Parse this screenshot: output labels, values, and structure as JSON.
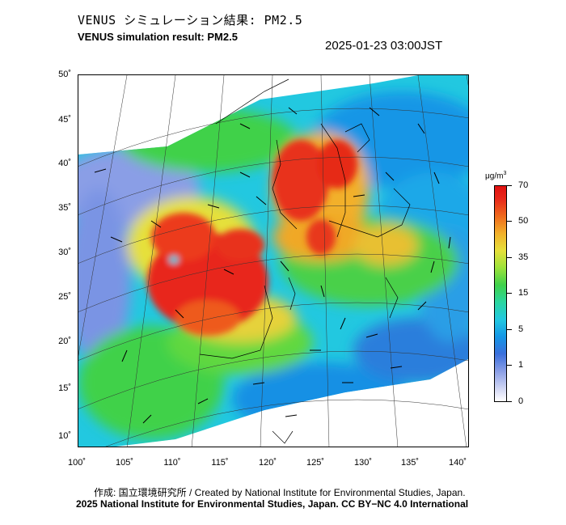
{
  "title_jp": "VENUS シミュレーション結果: PM2.5",
  "title_en": "VENUS simulation result: PM2.5",
  "timestamp": "2025-01-23 03:00JST",
  "lat_ticks": [
    "50˚",
    "45˚",
    "40˚",
    "35˚",
    "30˚",
    "25˚",
    "20˚",
    "15˚",
    "10˚"
  ],
  "lon_ticks": [
    "100˚",
    "105˚",
    "110˚",
    "115˚",
    "120˚",
    "125˚",
    "130˚",
    "135˚",
    "140˚"
  ],
  "colorbar": {
    "unit": "μg/m",
    "unit_sup": "3",
    "labels": [
      "70",
      "50",
      "35",
      "15",
      "5",
      "1",
      "0"
    ]
  },
  "credit_line1": "作成: 国立環境研究所 / Created by National Institute for Environmental Studies, Japan.",
  "credit_line2": "2025 National Institute for Environmental Studies, Japan. CC BY−NC 4.0 International"
}
